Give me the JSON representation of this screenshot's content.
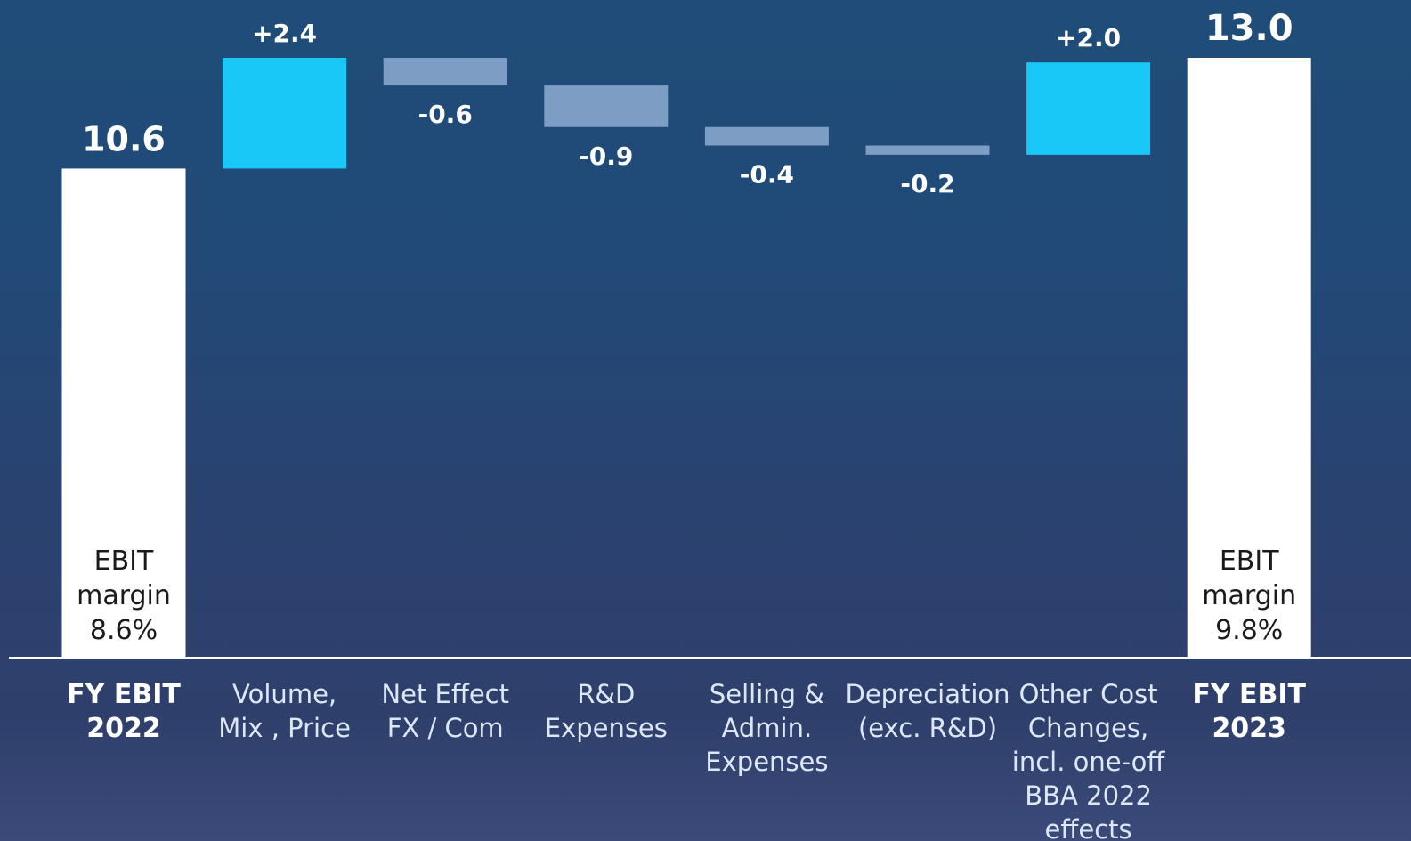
{
  "chart_data": {
    "type": "bar",
    "subtype": "waterfall",
    "categories": [
      [
        "FY EBIT",
        "2022"
      ],
      [
        "Volume,",
        "Mix , Price"
      ],
      [
        "Net Effect",
        "FX / Com"
      ],
      [
        "R&D",
        "Expenses"
      ],
      [
        "Selling &",
        "Admin.",
        "Expenses"
      ],
      [
        "Depreciation",
        "(exc. R&D)"
      ],
      [
        "Other Cost",
        "Changes,",
        "incl. one-off",
        "BBA 2022",
        "effects"
      ],
      [
        "FY EBIT",
        "2023"
      ]
    ],
    "values": [
      10.6,
      2.4,
      -0.6,
      -0.9,
      -0.4,
      -0.2,
      2.0,
      13.0
    ],
    "value_labels": [
      "10.6",
      "+2.4",
      "-0.6",
      "-0.9",
      "-0.4",
      "-0.2",
      "+2.0",
      "13.0"
    ],
    "bar_kinds": [
      "total",
      "delta",
      "delta",
      "delta",
      "delta",
      "delta",
      "delta",
      "total"
    ],
    "total_annotations": {
      "0": [
        "EBIT",
        "margin",
        "8.6%"
      ],
      "7": [
        "EBIT",
        "margin",
        "9.8%"
      ]
    },
    "ylim": [
      0,
      13.0
    ],
    "grid": false,
    "colors": {
      "total": "#ffffff",
      "increase": "#19c8f7",
      "decrease": "#7d9dc4",
      "axis": "#ffffff"
    }
  }
}
